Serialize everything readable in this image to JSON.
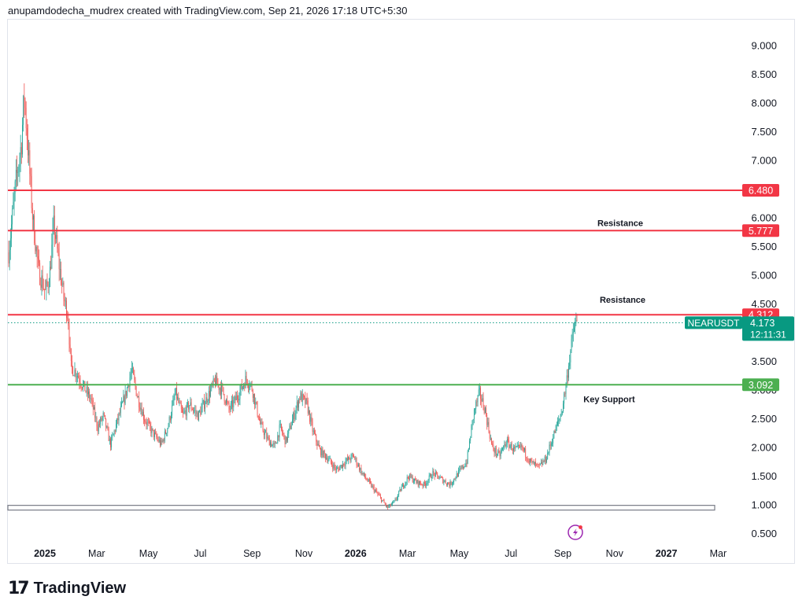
{
  "header": {
    "attribution": "anupamdodecha_mudrex created with TradingView.com, Sep 21, 2026 17:18 UTC+5:30"
  },
  "footer": {
    "brand": "TradingView"
  },
  "colors": {
    "up": "#26a69a",
    "down": "#ef5350",
    "resistance": "#f23645",
    "support": "#4caf50",
    "last": "#089981"
  },
  "chart_data": {
    "type": "candlestick",
    "symbol": "NEARUSDT",
    "last_price": "4.173",
    "countdown": "12:11:31",
    "y_ticks": [
      0.5,
      1.0,
      1.5,
      2.0,
      2.5,
      3.0,
      3.5,
      4.0,
      4.5,
      5.0,
      5.5,
      6.0,
      6.5,
      7.0,
      7.5,
      8.0,
      8.5,
      9.0
    ],
    "y_tick_labels": [
      "0.500",
      "1.000",
      "1.500",
      "2.000",
      "2.500",
      "3.000",
      "3.500",
      "4.000",
      "4.500",
      "5.000",
      "5.500",
      "6.000",
      "6.500",
      "7.000",
      "7.500",
      "8.000",
      "8.500",
      "9.000"
    ],
    "x_labels": [
      {
        "label": "2025",
        "bold": true,
        "month": 0
      },
      {
        "label": "Mar",
        "month": 2
      },
      {
        "label": "May",
        "month": 4
      },
      {
        "label": "Jul",
        "month": 6
      },
      {
        "label": "Sep",
        "month": 8
      },
      {
        "label": "Nov",
        "month": 10
      },
      {
        "label": "2026",
        "bold": true,
        "month": 12
      },
      {
        "label": "Mar",
        "month": 14
      },
      {
        "label": "May",
        "month": 16
      },
      {
        "label": "Jul",
        "month": 18
      },
      {
        "label": "Sep",
        "month": 20
      },
      {
        "label": "Nov",
        "month": 22
      },
      {
        "label": "2027",
        "bold": true,
        "month": 24
      },
      {
        "label": "Mar",
        "month": 26
      }
    ],
    "levels": [
      {
        "value": 6.48,
        "label": "6.480",
        "kind": "resistance"
      },
      {
        "value": 5.777,
        "label": "5.777",
        "kind": "resistance",
        "annotation": "Resistance"
      },
      {
        "value": 4.312,
        "label": "4.312",
        "kind": "resistance",
        "annotation": "Resistance"
      },
      {
        "value": 3.092,
        "label": "3.092",
        "kind": "support",
        "annotation": "Key Support"
      }
    ],
    "base_zone": {
      "value": 0.95
    },
    "path_points": [
      [
        -0.6,
        5.4
      ],
      [
        -0.35,
        6.6
      ],
      [
        -0.15,
        7.3
      ],
      [
        -0.05,
        8.15
      ],
      [
        0.1,
        7.1
      ],
      [
        0.25,
        6.0
      ],
      [
        0.45,
        5.1
      ],
      [
        0.7,
        4.7
      ],
      [
        0.85,
        5.0
      ],
      [
        1.0,
        5.9
      ],
      [
        1.15,
        5.3
      ],
      [
        1.35,
        4.6
      ],
      [
        1.5,
        4.3
      ],
      [
        1.6,
        3.4
      ],
      [
        1.8,
        3.3
      ],
      [
        2.0,
        3.1
      ],
      [
        2.3,
        2.85
      ],
      [
        2.55,
        2.35
      ],
      [
        2.75,
        2.55
      ],
      [
        3.0,
        2.05
      ],
      [
        3.3,
        2.55
      ],
      [
        3.55,
        2.95
      ],
      [
        3.75,
        3.35
      ],
      [
        3.95,
        2.9
      ],
      [
        4.2,
        2.5
      ],
      [
        4.5,
        2.25
      ],
      [
        4.8,
        2.05
      ],
      [
        5.05,
        2.4
      ],
      [
        5.3,
        2.95
      ],
      [
        5.55,
        2.55
      ],
      [
        5.8,
        2.75
      ],
      [
        6.1,
        2.55
      ],
      [
        6.4,
        2.85
      ],
      [
        6.7,
        3.15
      ],
      [
        6.95,
        3.0
      ],
      [
        7.2,
        2.65
      ],
      [
        7.5,
        2.9
      ],
      [
        7.8,
        3.2
      ],
      [
        8.0,
        3.05
      ],
      [
        8.3,
        2.4
      ],
      [
        8.55,
        2.15
      ],
      [
        8.8,
        2.0
      ],
      [
        9.0,
        2.35
      ],
      [
        9.2,
        2.1
      ],
      [
        9.45,
        2.5
      ],
      [
        9.7,
        2.9
      ],
      [
        9.95,
        2.75
      ],
      [
        10.15,
        2.3
      ],
      [
        10.4,
        1.95
      ],
      [
        10.7,
        1.8
      ],
      [
        11.0,
        1.6
      ],
      [
        11.3,
        1.75
      ],
      [
        11.6,
        1.85
      ],
      [
        11.9,
        1.55
      ],
      [
        12.2,
        1.35
      ],
      [
        12.5,
        1.15
      ],
      [
        12.8,
        0.95
      ],
      [
        13.05,
        1.05
      ],
      [
        13.3,
        1.3
      ],
      [
        13.55,
        1.5
      ],
      [
        13.8,
        1.4
      ],
      [
        14.1,
        1.35
      ],
      [
        14.4,
        1.55
      ],
      [
        14.7,
        1.45
      ],
      [
        15.0,
        1.35
      ],
      [
        15.3,
        1.55
      ],
      [
        15.6,
        1.75
      ],
      [
        15.85,
        2.6
      ],
      [
        16.05,
        2.95
      ],
      [
        16.25,
        2.65
      ],
      [
        16.5,
        2.0
      ],
      [
        16.75,
        1.85
      ],
      [
        17.0,
        2.1
      ],
      [
        17.3,
        1.95
      ],
      [
        17.55,
        2.0
      ],
      [
        17.85,
        1.75
      ],
      [
        18.15,
        1.65
      ],
      [
        18.4,
        1.8
      ],
      [
        18.7,
        2.25
      ],
      [
        18.95,
        2.6
      ],
      [
        19.1,
        3.05
      ],
      [
        19.25,
        3.6
      ],
      [
        19.4,
        4.1
      ],
      [
        19.5,
        4.17
      ]
    ]
  }
}
